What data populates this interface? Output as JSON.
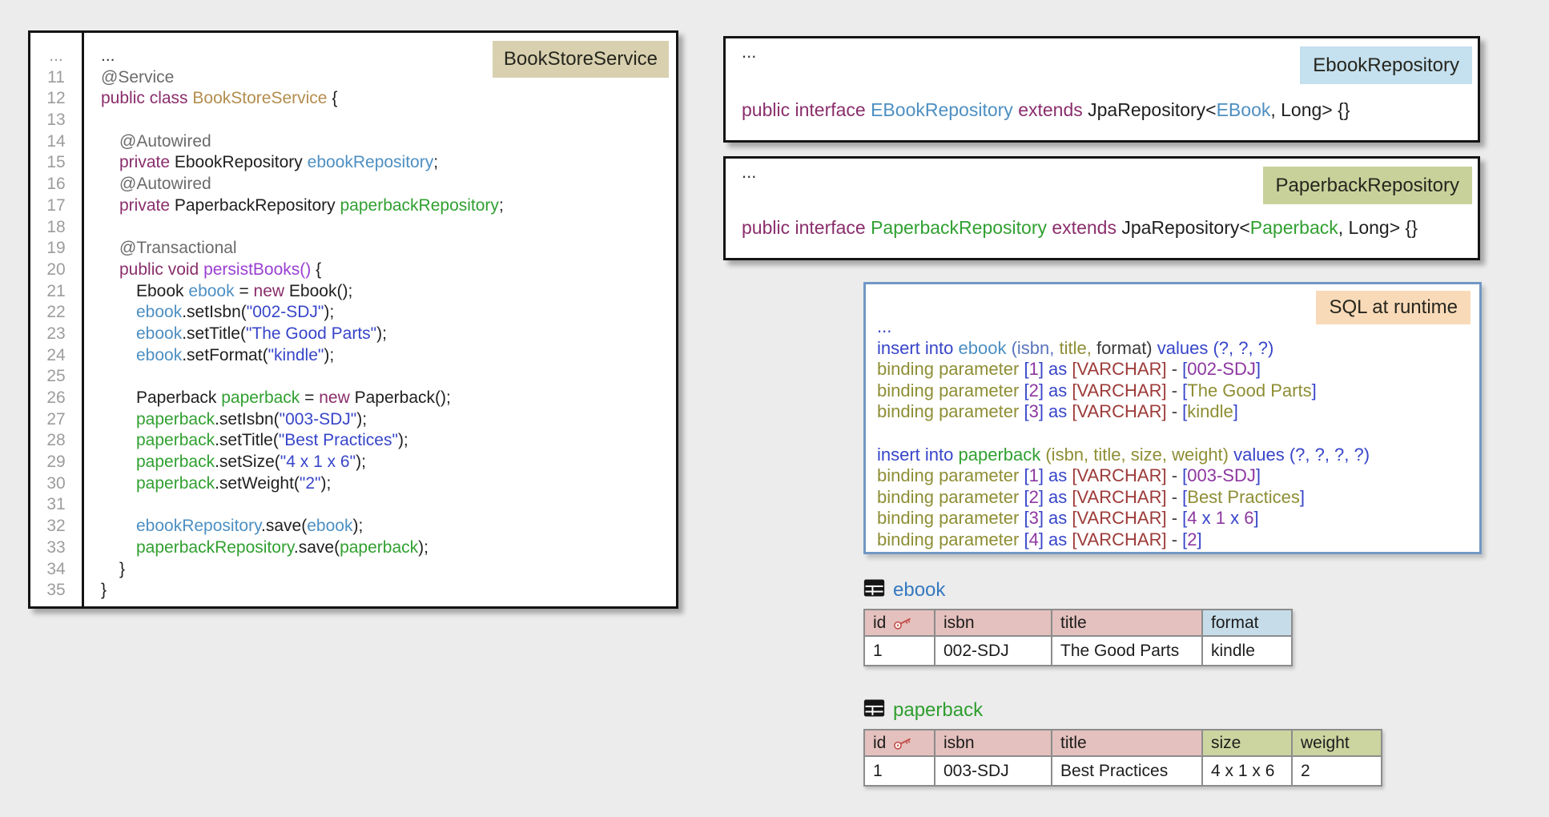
{
  "colors": {
    "kw": "#8a2e6c",
    "ann": "#6b6b6b",
    "cls": "#b38d4d",
    "meth": "#9a3fd1",
    "evar": "#4d8fc2",
    "pvar": "#31a031",
    "str": "#3745c9",
    "def": "#1f1f1f",
    "dark": "#3c3c3c",
    "sqlkw": "#3745c9",
    "olive": "#8e8e35",
    "varchar": "#9c3a38",
    "digit": "#8d37a0",
    "slate": "#5a75bd",
    "badge_tan": "#d8d0af",
    "badge_blue": "#c5e0ee",
    "badge_olive": "#c9d19b",
    "badge_peach": "#f9dab8",
    "header_pink": "#e4c1be",
    "header_blue": "#c6dde9",
    "header_green": "#ccd4a0",
    "table_name_ebook": "#3579c0",
    "table_name_paperback": "#2f9e2f",
    "sql_border": "#7198c5",
    "background": "#ececec"
  },
  "panels": {
    "book_store_service": {
      "badge": "BookStoreService",
      "lines": [
        {
          "num": "...",
          "indent": 0,
          "tokens": [
            [
              "dark",
              "..."
            ]
          ]
        },
        {
          "num": "11",
          "indent": 0,
          "tokens": [
            [
              "ann",
              "@Service"
            ]
          ]
        },
        {
          "num": "12",
          "indent": 0,
          "tokens": [
            [
              "kw",
              "public class "
            ],
            [
              "cls",
              "BookStoreService "
            ],
            [
              "def",
              "{"
            ]
          ]
        },
        {
          "num": "13",
          "indent": 0,
          "tokens": []
        },
        {
          "num": "14",
          "indent": 1,
          "tokens": [
            [
              "ann",
              "@Autowired"
            ]
          ]
        },
        {
          "num": "15",
          "indent": 1,
          "tokens": [
            [
              "kw",
              "private "
            ],
            [
              "def",
              "EbookRepository "
            ],
            [
              "evar",
              "ebookRepository"
            ],
            [
              "def",
              ";"
            ]
          ]
        },
        {
          "num": "16",
          "indent": 1,
          "tokens": [
            [
              "ann",
              "@Autowired"
            ]
          ]
        },
        {
          "num": "17",
          "indent": 1,
          "tokens": [
            [
              "kw",
              "private "
            ],
            [
              "def",
              "PaperbackRepository "
            ],
            [
              "pvar",
              "paperbackRepository"
            ],
            [
              "def",
              ";"
            ]
          ]
        },
        {
          "num": "18",
          "indent": 1,
          "tokens": []
        },
        {
          "num": "19",
          "indent": 1,
          "tokens": [
            [
              "ann",
              "@Transactional"
            ]
          ]
        },
        {
          "num": "20",
          "indent": 1,
          "tokens": [
            [
              "kw",
              "public void "
            ],
            [
              "meth",
              "persistBooks()"
            ],
            [
              "def",
              " {"
            ]
          ]
        },
        {
          "num": "21",
          "indent": 2,
          "tokens": [
            [
              "def",
              "Ebook "
            ],
            [
              "evar",
              "ebook"
            ],
            [
              "def",
              " = "
            ],
            [
              "kw",
              "new"
            ],
            [
              "def",
              " Ebook();"
            ]
          ]
        },
        {
          "num": "22",
          "indent": 2,
          "tokens": [
            [
              "evar",
              "ebook"
            ],
            [
              "def",
              ".setIsbn("
            ],
            [
              "str",
              "\"002-SDJ\""
            ],
            [
              "def",
              ");"
            ]
          ]
        },
        {
          "num": "23",
          "indent": 2,
          "tokens": [
            [
              "evar",
              "ebook"
            ],
            [
              "def",
              ".setTitle("
            ],
            [
              "str",
              "\"The Good Parts\""
            ],
            [
              "def",
              ");"
            ]
          ]
        },
        {
          "num": "24",
          "indent": 2,
          "tokens": [
            [
              "evar",
              "ebook"
            ],
            [
              "def",
              ".setFormat("
            ],
            [
              "str",
              "\"kindle\""
            ],
            [
              "def",
              ");"
            ]
          ]
        },
        {
          "num": "25",
          "indent": 2,
          "tokens": []
        },
        {
          "num": "26",
          "indent": 2,
          "tokens": [
            [
              "def",
              "Paperback "
            ],
            [
              "pvar",
              "paperback"
            ],
            [
              "def",
              " = "
            ],
            [
              "kw",
              "new"
            ],
            [
              "def",
              " Paperback();"
            ]
          ]
        },
        {
          "num": "27",
          "indent": 2,
          "tokens": [
            [
              "pvar",
              "paperback"
            ],
            [
              "def",
              ".setIsbn("
            ],
            [
              "str",
              "\"003-SDJ\""
            ],
            [
              "def",
              ");"
            ]
          ]
        },
        {
          "num": "28",
          "indent": 2,
          "tokens": [
            [
              "pvar",
              "paperback"
            ],
            [
              "def",
              ".setTitle("
            ],
            [
              "str",
              "\"Best Practices\""
            ],
            [
              "def",
              ");"
            ]
          ]
        },
        {
          "num": "29",
          "indent": 2,
          "tokens": [
            [
              "pvar",
              "paperback"
            ],
            [
              "def",
              ".setSize("
            ],
            [
              "str",
              "\"4 x 1 x 6\""
            ],
            [
              "def",
              ");"
            ]
          ]
        },
        {
          "num": "30",
          "indent": 2,
          "tokens": [
            [
              "pvar",
              "paperback"
            ],
            [
              "def",
              ".setWeight("
            ],
            [
              "str",
              "\"2\""
            ],
            [
              "def",
              ");"
            ]
          ]
        },
        {
          "num": "31",
          "indent": 2,
          "tokens": []
        },
        {
          "num": "32",
          "indent": 2,
          "tokens": [
            [
              "evar",
              "ebookRepository"
            ],
            [
              "def",
              ".save("
            ],
            [
              "evar",
              "ebook"
            ],
            [
              "def",
              ");"
            ]
          ]
        },
        {
          "num": "33",
          "indent": 2,
          "tokens": [
            [
              "pvar",
              "paperbackRepository"
            ],
            [
              "def",
              ".save("
            ],
            [
              "pvar",
              "paperback"
            ],
            [
              "def",
              ");"
            ]
          ]
        },
        {
          "num": "34",
          "indent": 1,
          "tokens": [
            [
              "def",
              "}"
            ]
          ]
        },
        {
          "num": "35",
          "indent": 0,
          "tokens": [
            [
              "def",
              "}"
            ]
          ]
        }
      ]
    },
    "ebook_repository": {
      "badge": "EbookRepository",
      "ellipsis": "...",
      "code": [
        [
          "kw",
          "public interface "
        ],
        [
          "evar",
          "EBookRepository "
        ],
        [
          "kw",
          "extends "
        ],
        [
          "def",
          "JpaRepository<"
        ],
        [
          "evar",
          "EBook"
        ],
        [
          "def",
          ", Long> {}"
        ]
      ]
    },
    "paperback_repository": {
      "badge": "PaperbackRepository",
      "ellipsis": "...",
      "code": [
        [
          "kw",
          "public interface "
        ],
        [
          "pvar",
          "PaperbackRepository "
        ],
        [
          "kw",
          "extends "
        ],
        [
          "def",
          "JpaRepository<"
        ],
        [
          "pvar",
          "Paperback"
        ],
        [
          "def",
          ", Long> {}"
        ]
      ]
    },
    "sql": {
      "badge": "SQL at runtime",
      "lines": [
        [
          [
            "sqlkw",
            "..."
          ]
        ],
        [
          [
            "sqlkw",
            "insert into "
          ],
          [
            "evar",
            "ebook "
          ],
          [
            "slate",
            "(isbn, "
          ],
          [
            "olive",
            "title, "
          ],
          [
            "dark",
            "format) "
          ],
          [
            "sqlkw",
            "values (?, ?, ?)"
          ]
        ],
        [
          [
            "olive",
            "binding parameter "
          ],
          [
            "sqlkw",
            "["
          ],
          [
            "digit",
            "1"
          ],
          [
            "sqlkw",
            "] as "
          ],
          [
            "varchar",
            "[VARCHAR]"
          ],
          [
            "dark",
            " - "
          ],
          [
            "sqlkw",
            "["
          ],
          [
            "digit",
            "002-SDJ"
          ],
          [
            "sqlkw",
            "]"
          ]
        ],
        [
          [
            "olive",
            "binding parameter "
          ],
          [
            "sqlkw",
            "["
          ],
          [
            "digit",
            "2"
          ],
          [
            "sqlkw",
            "] as "
          ],
          [
            "varchar",
            "[VARCHAR]"
          ],
          [
            "dark",
            " - "
          ],
          [
            "sqlkw",
            "["
          ],
          [
            "olive",
            "The Good Parts"
          ],
          [
            "sqlkw",
            "]"
          ]
        ],
        [
          [
            "olive",
            "binding parameter "
          ],
          [
            "sqlkw",
            "["
          ],
          [
            "digit",
            "3"
          ],
          [
            "sqlkw",
            "] as "
          ],
          [
            "varchar",
            "[VARCHAR]"
          ],
          [
            "dark",
            " - "
          ],
          [
            "sqlkw",
            "["
          ],
          [
            "olive",
            "kindle"
          ],
          [
            "sqlkw",
            "]"
          ]
        ],
        [],
        [
          [
            "sqlkw",
            "insert into "
          ],
          [
            "pvar",
            "paperback "
          ],
          [
            "olive",
            "(isbn, title, size, weight) "
          ],
          [
            "sqlkw",
            "values (?, ?, ?, ?)"
          ]
        ],
        [
          [
            "olive",
            "binding parameter "
          ],
          [
            "sqlkw",
            "["
          ],
          [
            "digit",
            "1"
          ],
          [
            "sqlkw",
            "] as "
          ],
          [
            "varchar",
            "[VARCHAR]"
          ],
          [
            "dark",
            " - "
          ],
          [
            "sqlkw",
            "["
          ],
          [
            "digit",
            "003-SDJ"
          ],
          [
            "sqlkw",
            "]"
          ]
        ],
        [
          [
            "olive",
            "binding parameter "
          ],
          [
            "sqlkw",
            "["
          ],
          [
            "digit",
            "2"
          ],
          [
            "sqlkw",
            "] as "
          ],
          [
            "varchar",
            "[VARCHAR]"
          ],
          [
            "dark",
            " - "
          ],
          [
            "sqlkw",
            "["
          ],
          [
            "olive",
            "Best Practices"
          ],
          [
            "sqlkw",
            "]"
          ]
        ],
        [
          [
            "olive",
            "binding parameter "
          ],
          [
            "sqlkw",
            "["
          ],
          [
            "digit",
            "3"
          ],
          [
            "sqlkw",
            "] as "
          ],
          [
            "varchar",
            "[VARCHAR]"
          ],
          [
            "dark",
            " - "
          ],
          [
            "sqlkw",
            "["
          ],
          [
            "digit",
            "4"
          ],
          [
            "sqlkw",
            " x "
          ],
          [
            "digit",
            "1"
          ],
          [
            "sqlkw",
            " x "
          ],
          [
            "digit",
            "6"
          ],
          [
            "sqlkw",
            "]"
          ]
        ],
        [
          [
            "olive",
            "binding parameter "
          ],
          [
            "sqlkw",
            "["
          ],
          [
            "digit",
            "4"
          ],
          [
            "sqlkw",
            "] as "
          ],
          [
            "varchar",
            "[VARCHAR]"
          ],
          [
            "dark",
            " - "
          ],
          [
            "sqlkw",
            "["
          ],
          [
            "digit",
            "2"
          ],
          [
            "sqlkw",
            "]"
          ]
        ]
      ]
    }
  },
  "tables": {
    "ebook": {
      "name": "ebook",
      "icon": "table-icon",
      "widths": [
        88,
        146,
        188,
        112
      ],
      "columns": [
        {
          "label": "id",
          "style": "pink",
          "key": true,
          "key_icon": "key-icon"
        },
        {
          "label": "isbn",
          "style": "pink"
        },
        {
          "label": "title",
          "style": "pink"
        },
        {
          "label": "format",
          "style": "blue"
        }
      ],
      "rows": [
        [
          "1",
          "002-SDJ",
          "The Good Parts",
          "kindle"
        ]
      ]
    },
    "paperback": {
      "name": "paperback",
      "icon": "table-icon",
      "widths": [
        88,
        146,
        188,
        112,
        112
      ],
      "columns": [
        {
          "label": "id",
          "style": "pink",
          "key": true,
          "key_icon": "key-icon"
        },
        {
          "label": "isbn",
          "style": "pink"
        },
        {
          "label": "title",
          "style": "pink"
        },
        {
          "label": "size",
          "style": "green"
        },
        {
          "label": "weight",
          "style": "green"
        }
      ],
      "rows": [
        [
          "1",
          "003-SDJ",
          "Best Practices",
          "4 x 1 x 6",
          "2"
        ]
      ]
    }
  }
}
